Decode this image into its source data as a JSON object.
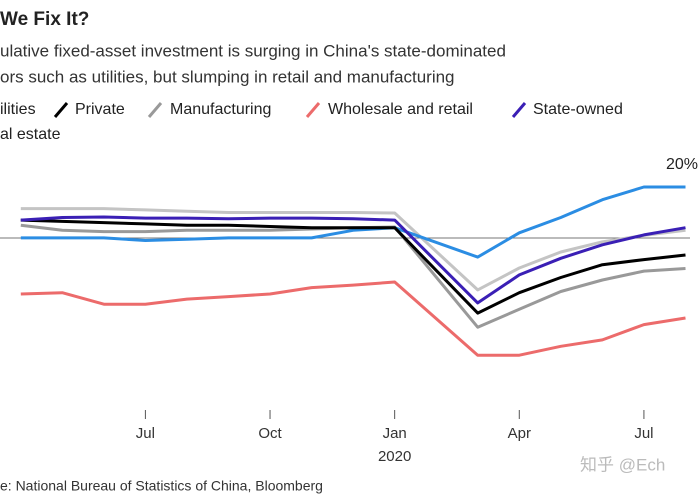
{
  "chart_data": {
    "type": "line",
    "title": "We Fix It?",
    "subtitle": [
      "ulative fixed-asset investment is surging in China's state-dominated",
      "ors such as utilities, but slumping in retail and manufacturing"
    ],
    "x": [
      -9,
      -8,
      -7,
      -6,
      -5,
      -4,
      -3,
      -2,
      -1,
      0,
      2,
      3,
      4,
      5,
      6,
      7
    ],
    "series": [
      {
        "name": "ilities",
        "color": "#2b8de3",
        "values": [
          0,
          0,
          0,
          -1,
          -0.5,
          0,
          0,
          0,
          3,
          4,
          -7.5,
          2,
          8,
          15,
          20,
          20
        ]
      },
      {
        "name": "Private",
        "color": "#000000",
        "values": [
          7,
          6.5,
          6,
          5.5,
          5,
          5,
          4.5,
          4,
          4,
          4,
          -29.5,
          -21.5,
          -15.5,
          -10.5,
          -8.5,
          -6.7
        ]
      },
      {
        "name": "Manufacturing",
        "color": "#999999",
        "values": [
          5,
          3,
          2.5,
          2.5,
          3,
          3,
          3,
          3.5,
          4,
          4.3,
          -35,
          -28,
          -21,
          -16.5,
          -13,
          -12
        ]
      },
      {
        "name": "Wholesale and retail",
        "color": "#ec6b6b",
        "values": [
          -22,
          -21.5,
          -26,
          -26,
          -24,
          -23,
          -22,
          -19.5,
          -18.5,
          -17.3,
          -46,
          -46,
          -42.5,
          -40,
          -34,
          -31.4
        ]
      },
      {
        "name": "State-owned",
        "color": "#3a1fb5",
        "values": [
          7,
          8,
          8.2,
          7.8,
          7.8,
          7.5,
          7.8,
          7.8,
          7.5,
          7,
          -25.5,
          -14.5,
          -8,
          -2.7,
          1.2,
          4
        ]
      },
      {
        "name": "al estate",
        "color": "#c4c4c4",
        "values": [
          11.5,
          11.5,
          11.5,
          11,
          10.5,
          10,
          10,
          10,
          10,
          9.8,
          -20.4,
          -11.8,
          -5.5,
          -1.5,
          1,
          3
        ]
      }
    ],
    "xlim": [
      -9.5,
      7.35
    ],
    "xticks": [
      {
        "value": -6,
        "label": "Jul"
      },
      {
        "value": -3,
        "label": "Oct"
      },
      {
        "value": 0,
        "label": "Jan"
      },
      {
        "value": 3,
        "label": "Apr"
      },
      {
        "value": 6,
        "label": "Jul"
      }
    ],
    "year_label": {
      "value": 0,
      "label": "2020"
    },
    "ylim": [
      -67.5,
      34.5
    ],
    "hlines": [
      0
    ],
    "annotation": "20%",
    "source": "e: National Bureau of Statistics of China, Bloomberg",
    "watermark": "知乎 @Ech"
  }
}
